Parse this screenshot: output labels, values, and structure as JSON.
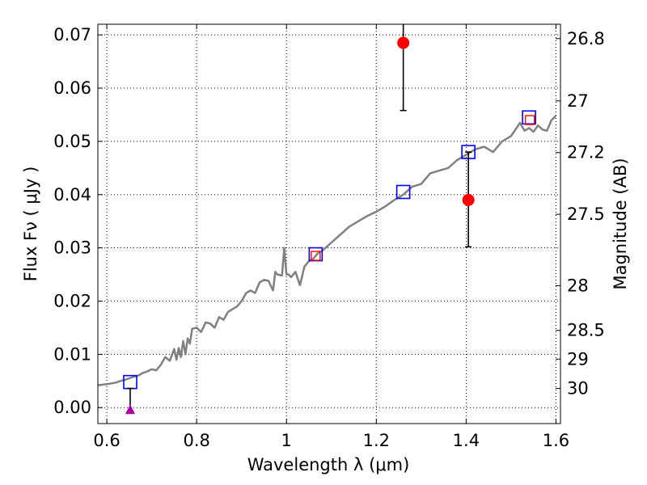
{
  "chart_data": {
    "type": "scatter",
    "xlabel": "Wavelength  λ (μm)",
    "ylabel": "Flux  Fν  ( μJy )",
    "ylabel_right": "Magnitude (AB)",
    "xlim": [
      0.58,
      1.61
    ],
    "ylim": [
      -0.003,
      0.072
    ],
    "grid": true,
    "x_ticks": [
      0.6,
      0.8,
      1.0,
      1.2,
      1.4,
      1.6
    ],
    "x_tick_labels": [
      "0.6",
      "0.8",
      "1",
      "1.2",
      "1.4",
      "1.6"
    ],
    "y_ticks": [
      0.0,
      0.01,
      0.02,
      0.03,
      0.04,
      0.05,
      0.06,
      0.07
    ],
    "y_tick_labels": [
      "0.00",
      "0.01",
      "0.02",
      "0.03",
      "0.04",
      "0.05",
      "0.06",
      "0.07"
    ],
    "right_ticks": [
      {
        "label": "26.8",
        "flux": 0.0693
      },
      {
        "label": "27",
        "flux": 0.0576
      },
      {
        "label": "27.2",
        "flux": 0.0479
      },
      {
        "label": "27.5",
        "flux": 0.0363
      },
      {
        "label": "28",
        "flux": 0.0229
      },
      {
        "label": "28.5",
        "flux": 0.0145
      },
      {
        "label": "29",
        "flux": 0.0091
      },
      {
        "label": "30",
        "flux": 0.0036
      }
    ],
    "series": [
      {
        "type": "line",
        "color": "#808080",
        "x": [
          0.58,
          0.6,
          0.62,
          0.63,
          0.64,
          0.65,
          0.66,
          0.67,
          0.68,
          0.69,
          0.7,
          0.71,
          0.72,
          0.73,
          0.74,
          0.75,
          0.755,
          0.76,
          0.765,
          0.77,
          0.775,
          0.78,
          0.785,
          0.79,
          0.8,
          0.81,
          0.82,
          0.83,
          0.84,
          0.85,
          0.86,
          0.87,
          0.88,
          0.89,
          0.9,
          0.91,
          0.92,
          0.93,
          0.94,
          0.95,
          0.96,
          0.97,
          0.975,
          0.98,
          0.99,
          0.995,
          1.0,
          1.005,
          1.01,
          1.02,
          1.03,
          1.04,
          1.05,
          1.06,
          1.07,
          1.08,
          1.1,
          1.12,
          1.14,
          1.16,
          1.18,
          1.2,
          1.22,
          1.24,
          1.26,
          1.28,
          1.3,
          1.32,
          1.34,
          1.36,
          1.38,
          1.4,
          1.42,
          1.44,
          1.46,
          1.48,
          1.5,
          1.52,
          1.53,
          1.54,
          1.55,
          1.56,
          1.57,
          1.58,
          1.59,
          1.6
        ],
        "y": [
          0.0042,
          0.0044,
          0.0047,
          0.005,
          0.0052,
          0.0055,
          0.0058,
          0.006,
          0.0065,
          0.0068,
          0.0072,
          0.007,
          0.008,
          0.0095,
          0.0088,
          0.011,
          0.009,
          0.0112,
          0.0095,
          0.0125,
          0.01,
          0.013,
          0.012,
          0.0148,
          0.015,
          0.0142,
          0.016,
          0.0158,
          0.015,
          0.017,
          0.0165,
          0.018,
          0.0185,
          0.019,
          0.02,
          0.0215,
          0.022,
          0.0215,
          0.0235,
          0.024,
          0.0238,
          0.022,
          0.0255,
          0.025,
          0.0248,
          0.03,
          0.025,
          0.025,
          0.0245,
          0.0255,
          0.023,
          0.0265,
          0.0275,
          0.028,
          0.029,
          0.0295,
          0.031,
          0.0325,
          0.034,
          0.035,
          0.036,
          0.0368,
          0.0378,
          0.039,
          0.04,
          0.0415,
          0.042,
          0.044,
          0.0445,
          0.045,
          0.0465,
          0.0475,
          0.0485,
          0.049,
          0.048,
          0.05,
          0.051,
          0.0535,
          0.052,
          0.0525,
          0.0518,
          0.053,
          0.0522,
          0.052,
          0.054,
          0.0548
        ]
      },
      {
        "type": "model-squares",
        "color": "#0000ff",
        "points": [
          [
            0.652,
            0.0048
          ],
          [
            1.065,
            0.0288
          ],
          [
            1.26,
            0.0405
          ],
          [
            1.405,
            0.048
          ],
          [
            1.54,
            0.0545
          ]
        ]
      },
      {
        "type": "observed-squares",
        "color": "#ff0000",
        "points": [
          [
            1.065,
            0.0285
          ],
          [
            1.542,
            0.054
          ]
        ]
      },
      {
        "type": "detections",
        "color": "#ff0000",
        "points": [
          {
            "x": 1.26,
            "y": 0.0685,
            "err_low": 0.0558,
            "err_high": 0.072
          },
          {
            "x": 1.405,
            "y": 0.039,
            "err_low": 0.0302,
            "err_high": 0.048
          }
        ]
      },
      {
        "type": "upper-limit",
        "color": "#aa00aa",
        "points": [
          {
            "x": 0.652,
            "y": -0.0003,
            "err_high": 0.0036
          }
        ]
      }
    ]
  }
}
